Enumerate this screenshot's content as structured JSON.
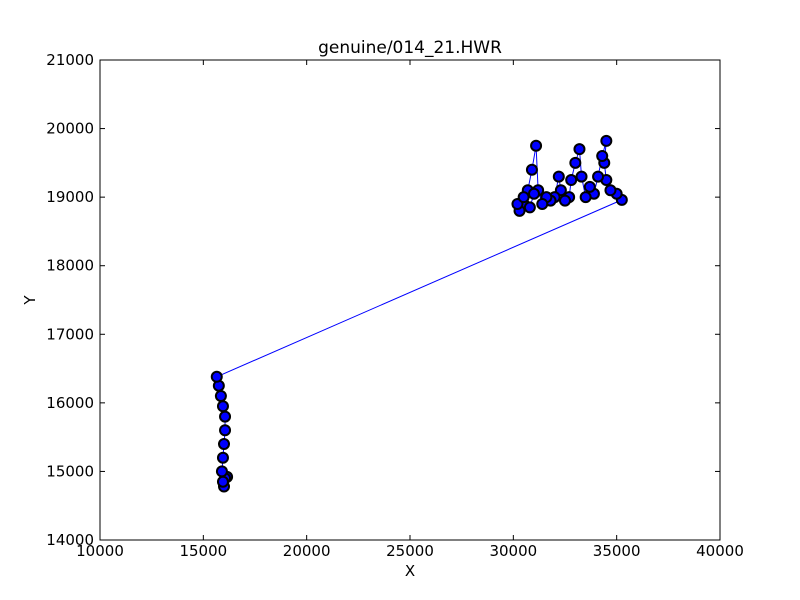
{
  "chart_data": {
    "type": "line",
    "title": "genuine/014_21.HWR",
    "x_label": "X",
    "y_label": "Y",
    "xlim": [
      10000,
      40000
    ],
    "ylim": [
      14000,
      21000
    ],
    "xticks": [
      10000,
      15000,
      20000,
      25000,
      30000,
      35000,
      40000
    ],
    "yticks": [
      14000,
      15000,
      16000,
      17000,
      18000,
      19000,
      20000,
      21000
    ],
    "grid": false,
    "series": [
      {
        "color": "#0000ff",
        "marker_edge_color": "#000000",
        "x": [
          16150,
          16050,
          16000,
          15950,
          15900,
          15950,
          16000,
          16050,
          16050,
          15950,
          15850,
          15750,
          15650,
          35250,
          35000,
          34700,
          34500,
          34400,
          34500,
          34300,
          34100,
          33900,
          33700,
          33500,
          33300,
          33200,
          33000,
          32800,
          32700,
          32500,
          32300,
          32200,
          32000,
          31800,
          31600,
          31400,
          31200,
          31100,
          30900,
          30700,
          30500,
          30300,
          30200,
          30500,
          30800,
          31000
        ],
        "y": [
          14920,
          14900,
          14780,
          14850,
          15000,
          15200,
          15400,
          15600,
          15800,
          15950,
          16100,
          16250,
          16380,
          18960,
          19050,
          19100,
          19250,
          19500,
          19820,
          19600,
          19300,
          19050,
          19150,
          19000,
          19300,
          19700,
          19500,
          19250,
          19000,
          18950,
          19100,
          19300,
          19000,
          18950,
          19000,
          18900,
          19100,
          19750,
          19400,
          19100,
          18900,
          18800,
          18900,
          19000,
          18850,
          19050
        ]
      }
    ]
  }
}
